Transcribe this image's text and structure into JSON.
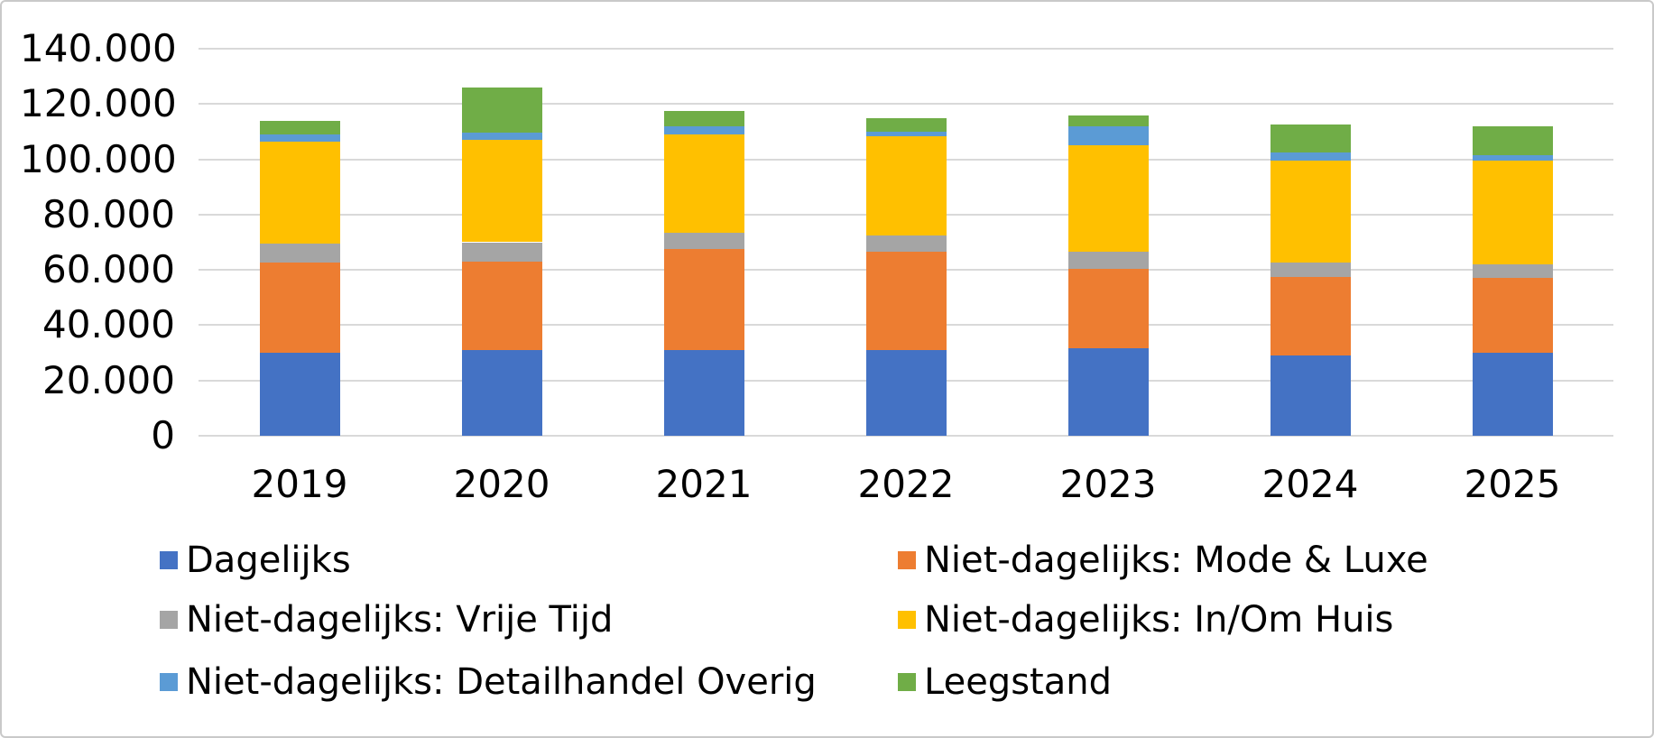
{
  "chart_data": {
    "type": "bar",
    "stacked": true,
    "title": "",
    "xlabel": "",
    "ylabel": "",
    "categories": [
      "2019",
      "2020",
      "2021",
      "2022",
      "2023",
      "2024",
      "2025"
    ],
    "series": [
      {
        "name": "Dagelijks",
        "color": "#4472C4",
        "values": [
          30000,
          31000,
          31000,
          31000,
          31500,
          29000,
          30000
        ]
      },
      {
        "name": "Niet-dagelijks: Mode & Luxe",
        "color": "#ED7D31",
        "values": [
          32500,
          32000,
          36500,
          35500,
          29000,
          28500,
          27000
        ]
      },
      {
        "name": "Niet-dagelijks: Vrije Tijd",
        "color": "#A5A5A5",
        "values": [
          7000,
          7000,
          6000,
          6000,
          6000,
          5000,
          5000
        ]
      },
      {
        "name": "Niet-dagelijks: In/Om Huis",
        "color": "#FFC000",
        "values": [
          37000,
          37000,
          35500,
          36000,
          38500,
          37000,
          37500
        ]
      },
      {
        "name": "Niet-dagelijks: Detailhandel Overig",
        "color": "#5B9BD5",
        "values": [
          2500,
          2500,
          3000,
          1500,
          7000,
          3000,
          2000
        ]
      },
      {
        "name": "Leegstand",
        "color": "#70AD47",
        "values": [
          5000,
          16500,
          5500,
          5000,
          4000,
          10000,
          10500
        ]
      }
    ],
    "totals": [
      114000,
      126000,
      117500,
      115000,
      116000,
      112500,
      112000
    ],
    "ylim": [
      0,
      140000
    ],
    "ytick_step": 20000,
    "ytick_labels": [
      "0",
      "20.000",
      "40.000",
      "60.000",
      "80.000",
      "100.000",
      "120.000",
      "140.000"
    ],
    "grid": true,
    "gridline_color": "#D9D9D9",
    "legend_position": "bottom, two columns, reading order: Dagelijks | Mode & Luxe / Vrije Tijd | In/Om Huis / Detailhandel Overig | Leegstand",
    "border_color": "#C9C9C9"
  }
}
